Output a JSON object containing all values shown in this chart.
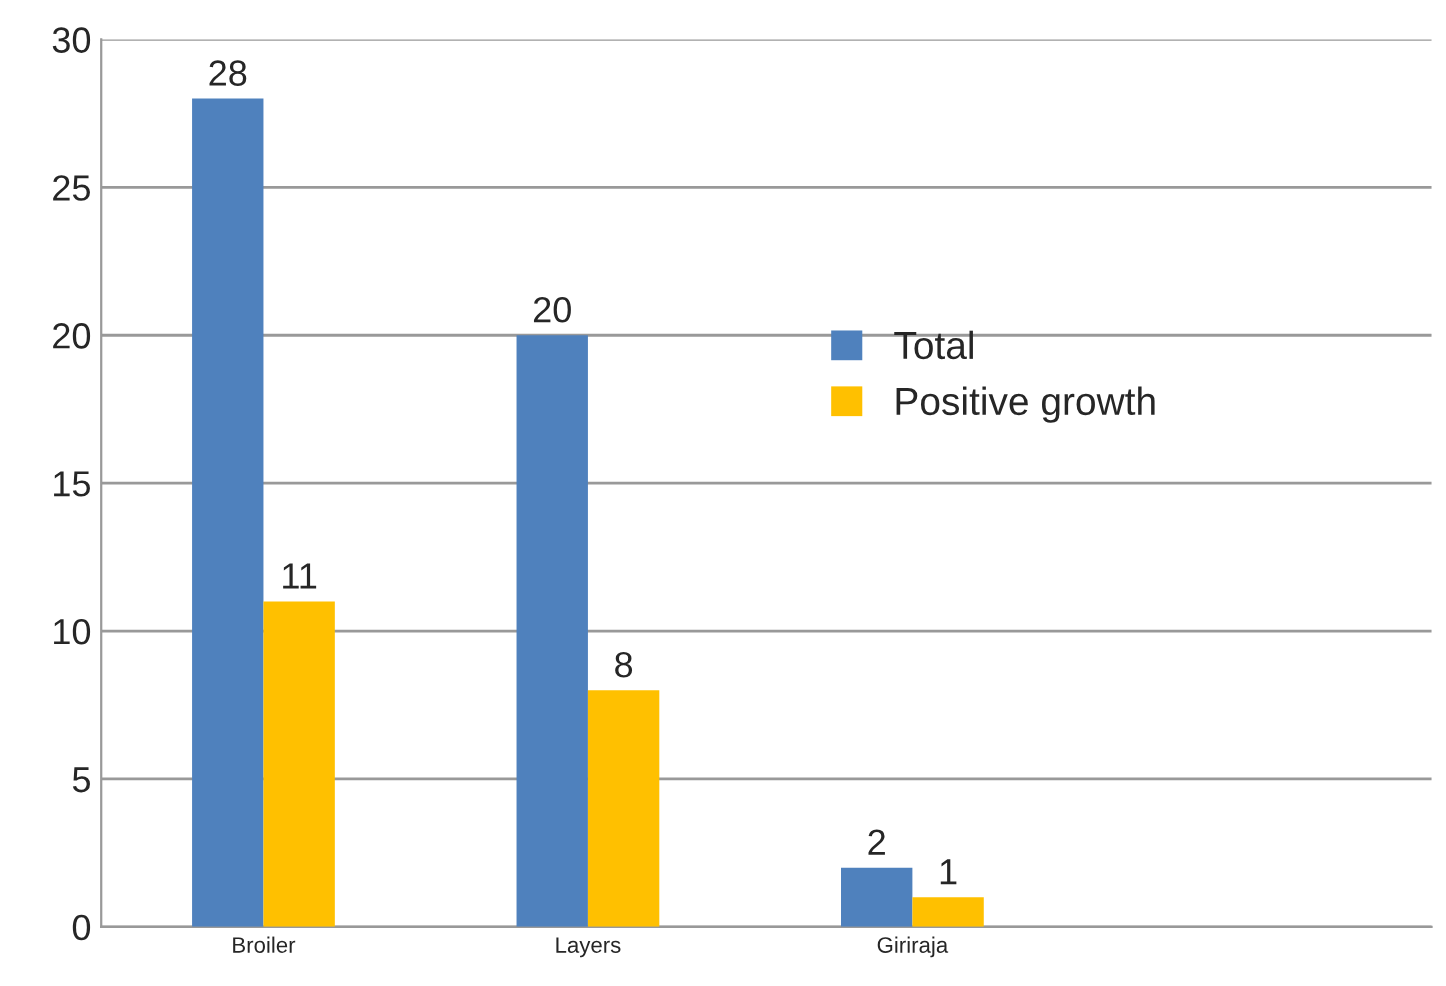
{
  "chart_data": {
    "type": "bar",
    "categories": [
      "Broiler",
      "Layers",
      "Giriraja"
    ],
    "series": [
      {
        "name": "Total",
        "color": "#4f81bd",
        "values": [
          28,
          20,
          2
        ]
      },
      {
        "name": "Positive growth",
        "color": "#ffc000",
        "values": [
          11,
          8,
          1
        ]
      }
    ],
    "ylim": [
      0,
      30
    ],
    "yticks": [
      0,
      5,
      10,
      15,
      20,
      25,
      30
    ],
    "grid": "y",
    "legend": "right",
    "data_labels": true
  }
}
